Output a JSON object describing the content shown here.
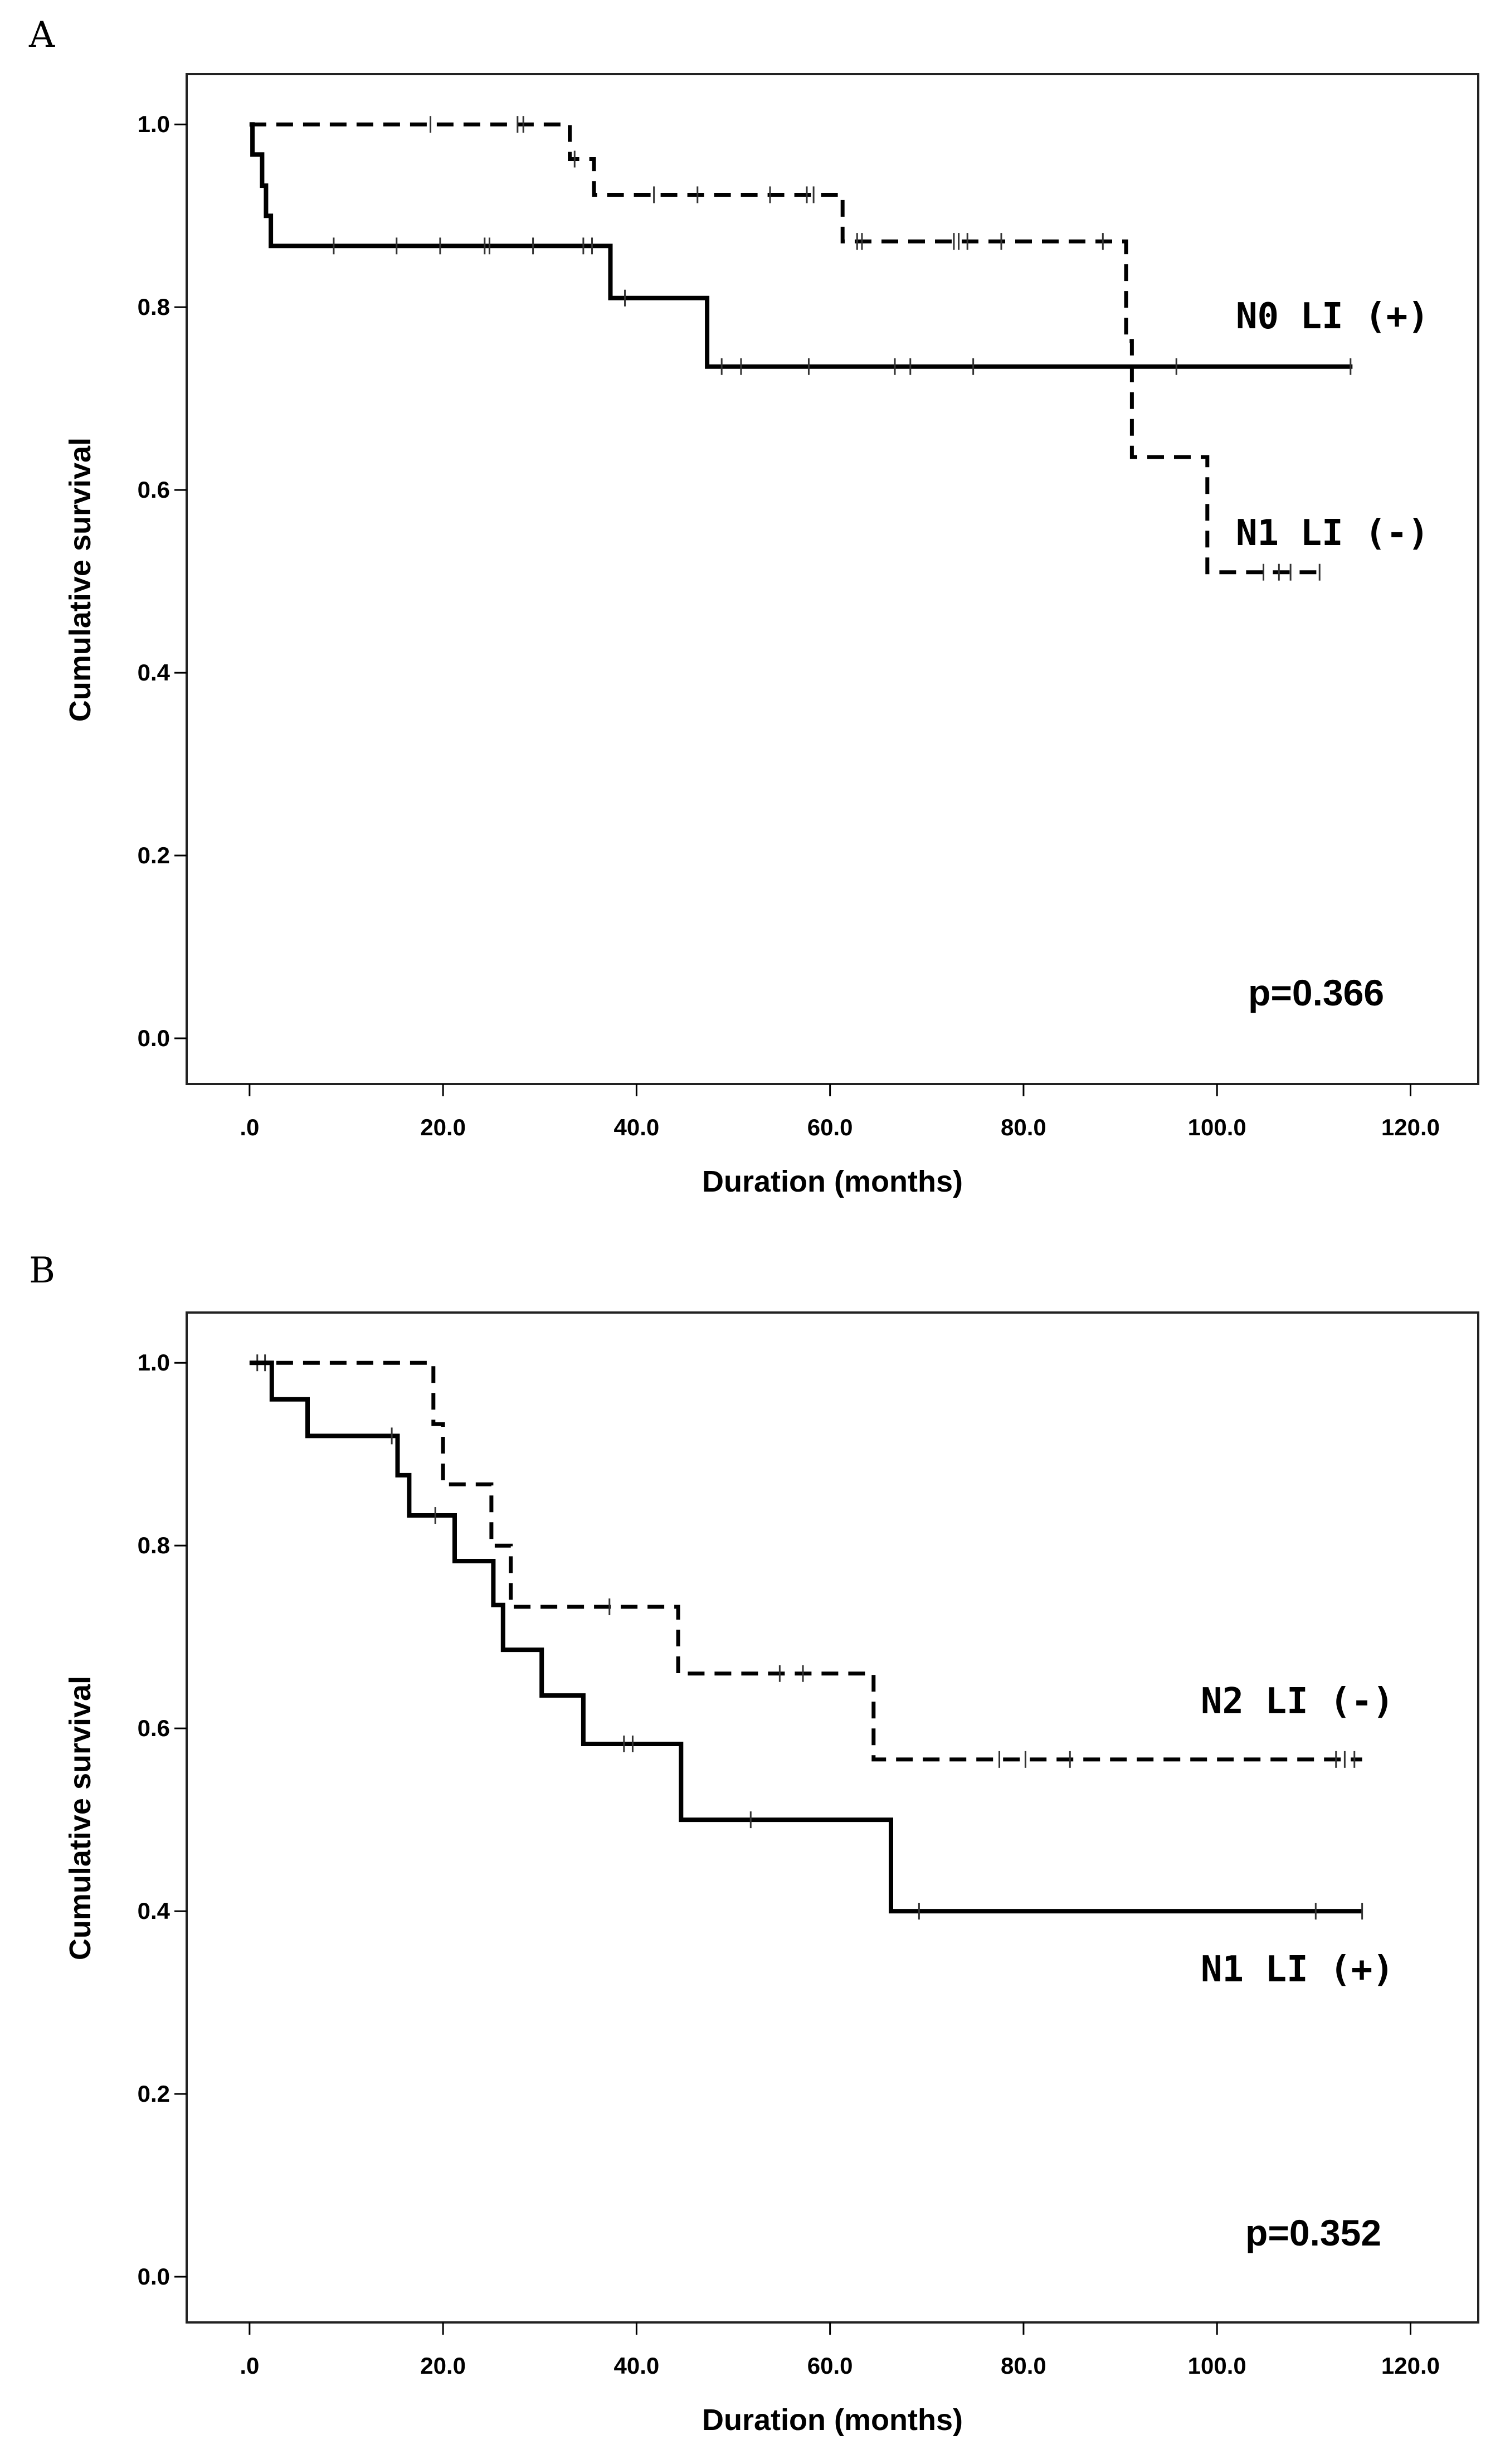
{
  "chart_data": [
    {
      "type": "line",
      "panel_label": "A",
      "xlabel": "Duration (months)",
      "ylabel": "Cumulative survival",
      "xlim": [
        -6.5,
        127
      ],
      "ylim": [
        -0.05,
        1.055
      ],
      "x_ticks": [
        0,
        20,
        40,
        60,
        80,
        100,
        120
      ],
      "x_tick_labels": [
        ".0",
        "20.0",
        "40.0",
        "60.0",
        "80.0",
        "100.0",
        "120.0"
      ],
      "y_ticks": [
        0,
        0.2,
        0.4,
        0.6,
        0.8,
        1.0
      ],
      "y_tick_labels": [
        "0.0",
        "0.2",
        "0.4",
        "0.6",
        "0.8",
        "1.0"
      ],
      "p_value_text": "p=0.366",
      "series": [
        {
          "name": "N0 LI (+)",
          "style": "solid",
          "steps": [
            [
              0,
              1.0
            ],
            [
              0.3,
              0.967
            ],
            [
              1.3,
              0.933
            ],
            [
              1.7,
              0.9
            ],
            [
              2.2,
              0.867
            ],
            [
              37.3,
              0.81
            ],
            [
              47.3,
              0.735
            ],
            [
              114,
              0.735
            ]
          ],
          "censored": [
            [
              8.7,
              0.867
            ],
            [
              15.2,
              0.867
            ],
            [
              19.7,
              0.867
            ],
            [
              24.3,
              0.867
            ],
            [
              24.8,
              0.867
            ],
            [
              29.3,
              0.867
            ],
            [
              34.5,
              0.867
            ],
            [
              35.4,
              0.867
            ],
            [
              38.8,
              0.81
            ],
            [
              48.8,
              0.735
            ],
            [
              50.8,
              0.735
            ],
            [
              57.8,
              0.735
            ],
            [
              66.7,
              0.735
            ],
            [
              68.3,
              0.735
            ],
            [
              74.8,
              0.735
            ],
            [
              95.8,
              0.735
            ],
            [
              113.8,
              0.735
            ]
          ]
        },
        {
          "name": "N1 LI (-)",
          "style": "dashed",
          "steps": [
            [
              0,
              1.0
            ],
            [
              33.1,
              0.962
            ],
            [
              35.6,
              0.923
            ],
            [
              61.3,
              0.872
            ],
            [
              90.6,
              0.763
            ],
            [
              91.2,
              0.636
            ],
            [
              99,
              0.51
            ],
            [
              111,
              0.51
            ]
          ],
          "censored": [
            [
              18.7,
              1.0
            ],
            [
              27.7,
              1.0
            ],
            [
              28.3,
              1.0
            ],
            [
              33.6,
              0.962
            ],
            [
              41.8,
              0.923
            ],
            [
              46.3,
              0.923
            ],
            [
              53.8,
              0.923
            ],
            [
              57.6,
              0.923
            ],
            [
              58.3,
              0.923
            ],
            [
              62.8,
              0.872
            ],
            [
              63.3,
              0.872
            ],
            [
              72.8,
              0.872
            ],
            [
              73.3,
              0.872
            ],
            [
              74.2,
              0.872
            ],
            [
              77.7,
              0.872
            ],
            [
              88.2,
              0.872
            ],
            [
              104.8,
              0.51
            ],
            [
              106.4,
              0.51
            ],
            [
              107.6,
              0.51
            ],
            [
              110.6,
              0.51
            ]
          ]
        }
      ]
    },
    {
      "type": "line",
      "panel_label": "B",
      "xlabel": "Duration (months)",
      "ylabel": "Cumulative survival",
      "xlim": [
        -6.5,
        127
      ],
      "ylim": [
        -0.05,
        1.055
      ],
      "x_ticks": [
        0,
        20,
        40,
        60,
        80,
        100,
        120
      ],
      "x_tick_labels": [
        ".0",
        "20.0",
        "40.0",
        "60.0",
        "80.0",
        "100.0",
        "120.0"
      ],
      "y_ticks": [
        0,
        0.2,
        0.4,
        0.6,
        0.8,
        1.0
      ],
      "y_tick_labels": [
        "0.0",
        "0.2",
        "0.4",
        "0.6",
        "0.8",
        "1.0"
      ],
      "p_value_text": "p=0.352",
      "series": [
        {
          "name": "N2 LI (-)",
          "style": "dashed",
          "steps": [
            [
              0,
              1.0
            ],
            [
              19,
              0.933
            ],
            [
              20,
              0.867
            ],
            [
              25,
              0.8
            ],
            [
              27,
              0.733
            ],
            [
              44.3,
              0.66
            ],
            [
              64.5,
              0.566
            ],
            [
              115,
              0.566
            ]
          ],
          "censored": [
            [
              0.8,
              1.0
            ],
            [
              1.6,
              1.0
            ],
            [
              37.2,
              0.733
            ],
            [
              54.8,
              0.66
            ],
            [
              57.2,
              0.66
            ],
            [
              77.5,
              0.566
            ],
            [
              80.2,
              0.566
            ],
            [
              84.8,
              0.566
            ],
            [
              112.3,
              0.566
            ],
            [
              113.2,
              0.566
            ],
            [
              114.2,
              0.566
            ]
          ]
        },
        {
          "name": "N1 LI (+)",
          "style": "solid",
          "steps": [
            [
              0,
              1.0
            ],
            [
              2.3,
              0.96
            ],
            [
              6,
              0.92
            ],
            [
              15.3,
              0.877
            ],
            [
              16.5,
              0.833
            ],
            [
              21.2,
              0.783
            ],
            [
              25.2,
              0.735
            ],
            [
              26.2,
              0.686
            ],
            [
              30.2,
              0.636
            ],
            [
              34.5,
              0.583
            ],
            [
              44.6,
              0.5
            ],
            [
              66.3,
              0.4
            ],
            [
              115,
              0.4
            ]
          ],
          "censored": [
            [
              14.7,
              0.92
            ],
            [
              19.2,
              0.833
            ],
            [
              38.7,
              0.583
            ],
            [
              39.6,
              0.583
            ],
            [
              51.8,
              0.5
            ],
            [
              69.2,
              0.4
            ],
            [
              110.2,
              0.4
            ],
            [
              115,
              0.4
            ]
          ]
        }
      ]
    }
  ]
}
